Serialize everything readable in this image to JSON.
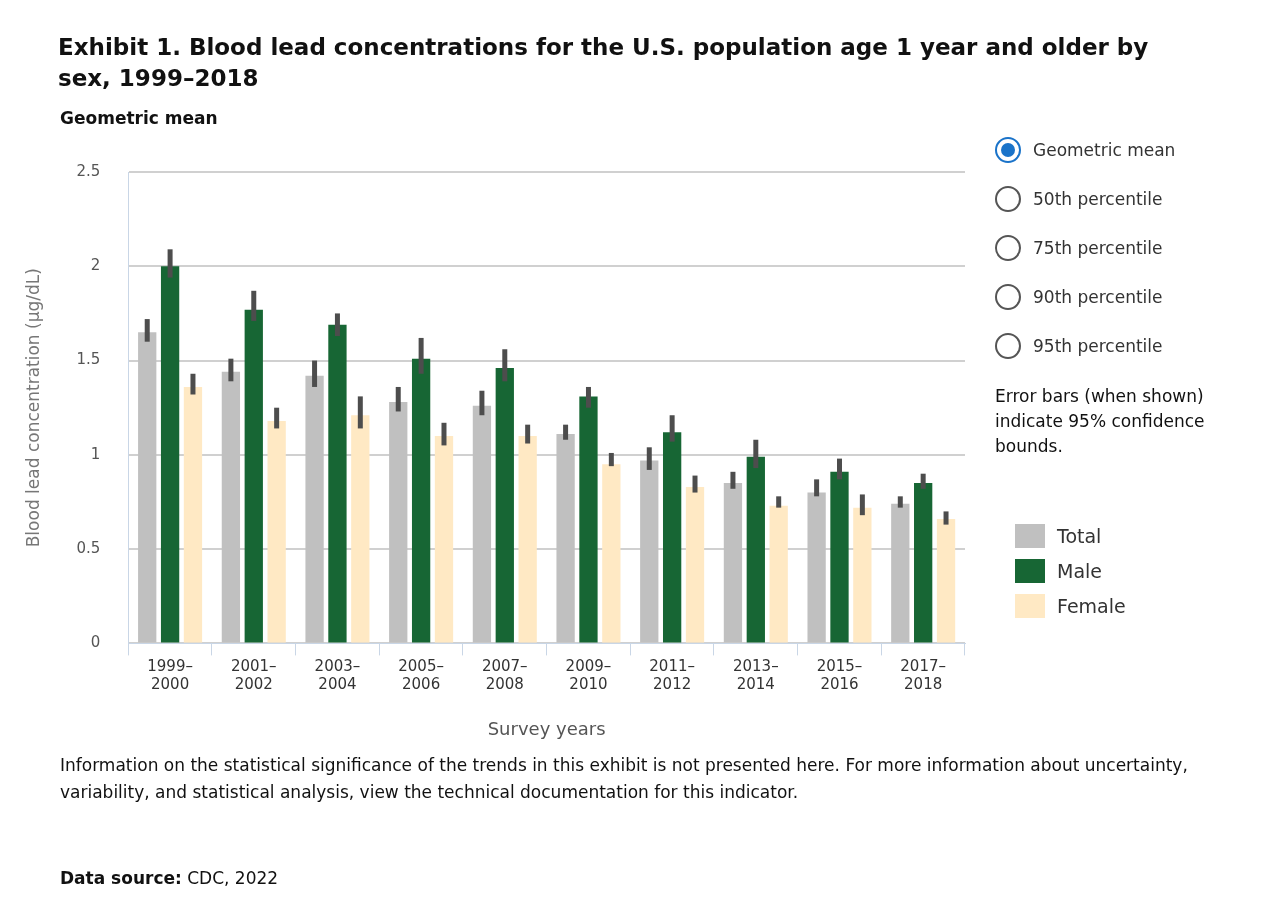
{
  "chart_data": {
    "type": "bar",
    "title": "Exhibit 1. Blood lead concentrations for the U.S. population age 1 year and older by sex, 1999–2018",
    "subtitle": "Geometric mean",
    "xlabel": "Survey years",
    "ylabel": "Blood lead concentration (µg/dL)",
    "categories": [
      "1999–2000",
      "2001–2002",
      "2003–2004",
      "2005–2006",
      "2007–2008",
      "2009–2010",
      "2011–2012",
      "2013–2014",
      "2015–2016",
      "2017–2018"
    ],
    "series": [
      {
        "name": "Total",
        "color": "#c0c0c0",
        "values": [
          1.65,
          1.44,
          1.42,
          1.28,
          1.26,
          1.11,
          0.97,
          0.85,
          0.8,
          0.74
        ],
        "errors": [
          [
            1.6,
            1.72
          ],
          [
            1.39,
            1.51
          ],
          [
            1.36,
            1.5
          ],
          [
            1.23,
            1.36
          ],
          [
            1.21,
            1.34
          ],
          [
            1.08,
            1.16
          ],
          [
            0.92,
            1.04
          ],
          [
            0.82,
            0.91
          ],
          [
            0.78,
            0.87
          ],
          [
            0.72,
            0.78
          ]
        ]
      },
      {
        "name": "Male",
        "color": "#176634",
        "values": [
          2.0,
          1.77,
          1.69,
          1.51,
          1.46,
          1.31,
          1.12,
          0.99,
          0.91,
          0.85
        ],
        "errors": [
          [
            1.94,
            2.09
          ],
          [
            1.71,
            1.87
          ],
          [
            1.63,
            1.75
          ],
          [
            1.43,
            1.62
          ],
          [
            1.39,
            1.56
          ],
          [
            1.25,
            1.36
          ],
          [
            1.07,
            1.21
          ],
          [
            0.93,
            1.08
          ],
          [
            0.87,
            0.98
          ],
          [
            0.82,
            0.9
          ]
        ]
      },
      {
        "name": "Female",
        "color": "#ffe9c4",
        "values": [
          1.36,
          1.18,
          1.21,
          1.1,
          1.1,
          0.95,
          0.83,
          0.73,
          0.72,
          0.66
        ],
        "errors": [
          [
            1.32,
            1.43
          ],
          [
            1.14,
            1.25
          ],
          [
            1.14,
            1.31
          ],
          [
            1.05,
            1.17
          ],
          [
            1.06,
            1.16
          ],
          [
            0.94,
            1.01
          ],
          [
            0.8,
            0.89
          ],
          [
            0.72,
            0.78
          ],
          [
            0.68,
            0.79
          ],
          [
            0.63,
            0.7
          ]
        ]
      }
    ],
    "ylim": [
      0,
      2.5
    ],
    "yticks": [
      0,
      0.5,
      1,
      1.5,
      2,
      2.5
    ],
    "grid": "y",
    "legend": "right",
    "annotations": [
      "Geometric mean",
      "50th percentile",
      "75th percentile",
      "90th percentile",
      "95th percentile",
      "Error bars (when shown) indicate 95% confidence bounds.",
      "Information on the statistical significance of the trends in this exhibit is not presented here. For more information about uncertainty, variability, and statistical analysis, view the technical documentation for this indicator.",
      "Data source: CDC, 2022"
    ]
  }
}
